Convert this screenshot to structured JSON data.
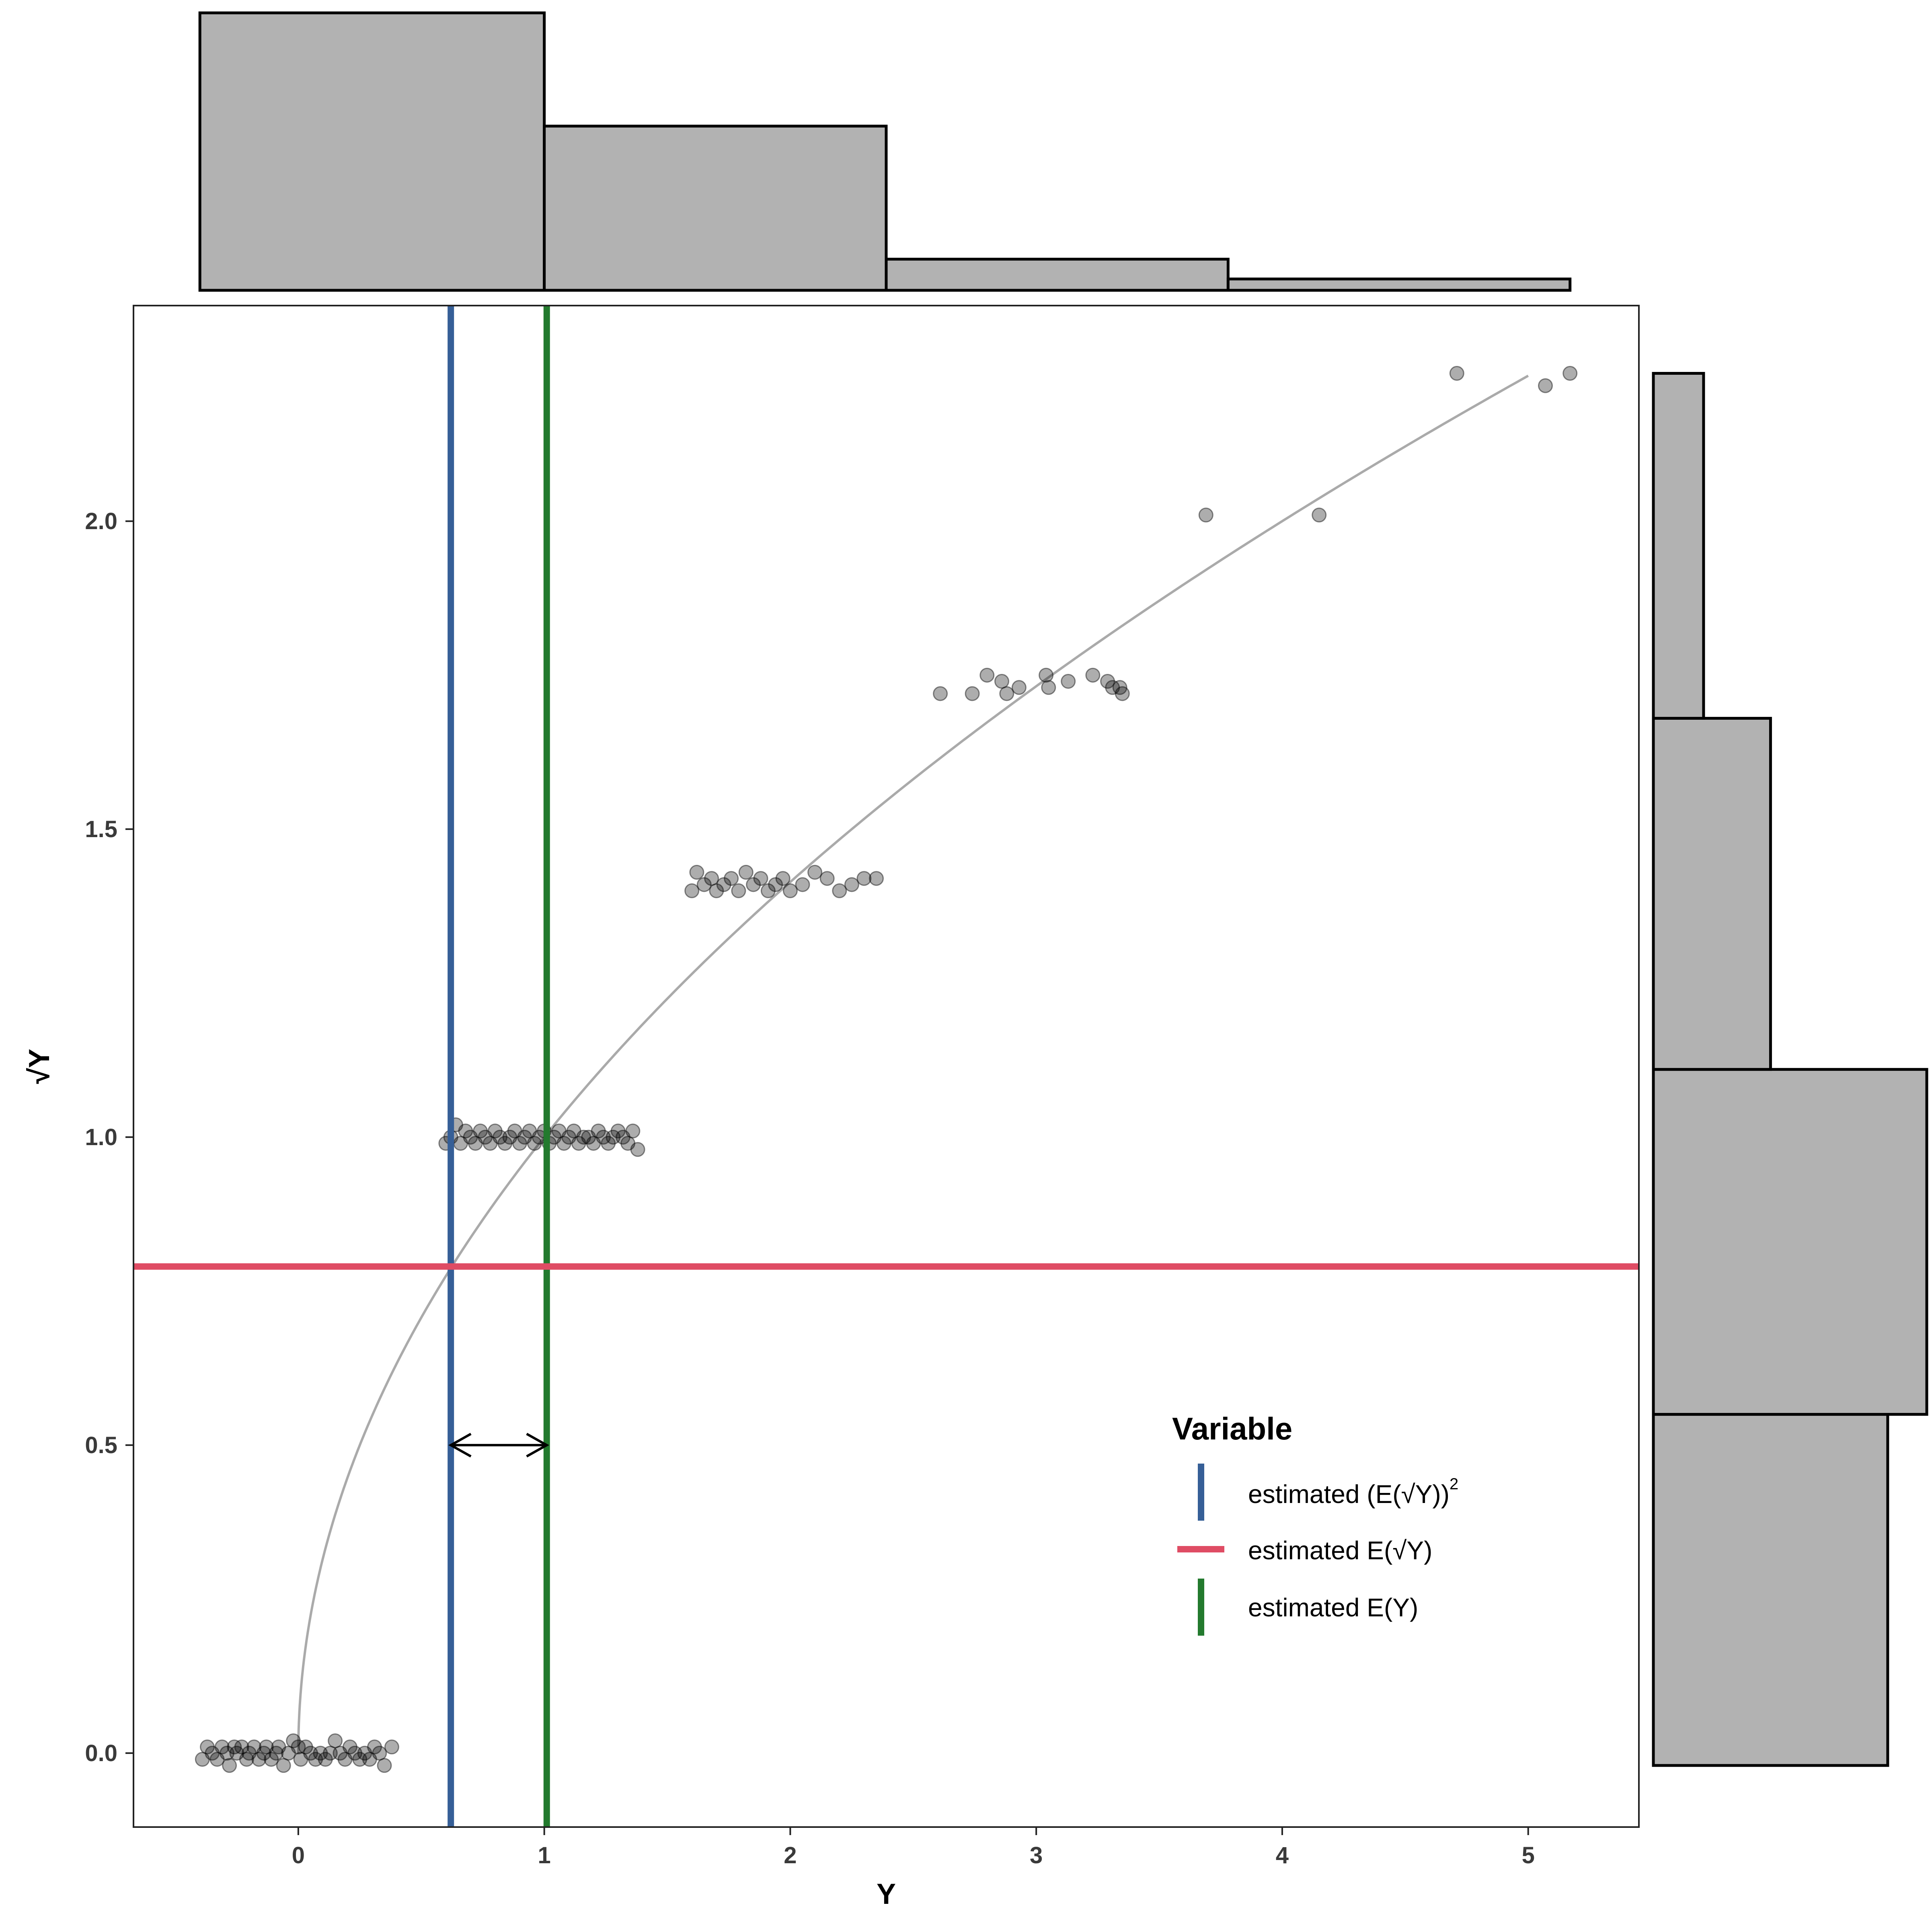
{
  "chart_data": {
    "type": "scatter",
    "xlabel": "Y",
    "ylabel": "√Y",
    "xlim": [
      -0.67,
      5.45
    ],
    "ylim": [
      -0.12,
      2.35
    ],
    "x_ticks": [
      0,
      1,
      2,
      3,
      4,
      5
    ],
    "x_tick_labels": [
      "0",
      "1",
      "2",
      "3",
      "4",
      "5"
    ],
    "y_ticks": [
      0.0,
      0.5,
      1.0,
      1.5,
      2.0
    ],
    "y_tick_labels": [
      "0.0",
      "0.5",
      "1.0",
      "1.5",
      "2.0"
    ],
    "grid": false,
    "colors": {
      "blue": "#365f97",
      "red": "#df4c64",
      "green": "#237a2e",
      "curve": "#aaaaaa",
      "points": "#000000",
      "hist_fill": "#b2b2b2",
      "hist_stroke": "#000000"
    },
    "curve": {
      "function": "sqrt",
      "x_range": [
        0,
        5
      ]
    },
    "reference_lines": {
      "vertical_blue_x": 0.62,
      "vertical_green_x": 1.01,
      "horizontal_red_y": 0.79
    },
    "arrow": {
      "x_from": 0.62,
      "x_to": 1.01,
      "y": 0.5
    },
    "points": [
      [
        -0.39,
        -0.01
      ],
      [
        -0.37,
        0.01
      ],
      [
        -0.35,
        0.0
      ],
      [
        -0.33,
        -0.01
      ],
      [
        -0.31,
        0.01
      ],
      [
        -0.29,
        0.0
      ],
      [
        -0.28,
        -0.02
      ],
      [
        -0.26,
        0.01
      ],
      [
        -0.25,
        0.0
      ],
      [
        -0.23,
        0.01
      ],
      [
        -0.21,
        -0.01
      ],
      [
        -0.2,
        0.0
      ],
      [
        -0.18,
        0.01
      ],
      [
        -0.16,
        -0.01
      ],
      [
        -0.14,
        0.0
      ],
      [
        -0.13,
        0.01
      ],
      [
        -0.11,
        -0.01
      ],
      [
        -0.09,
        0.0
      ],
      [
        -0.08,
        0.01
      ],
      [
        -0.06,
        -0.02
      ],
      [
        -0.04,
        0.0
      ],
      [
        -0.02,
        0.02
      ],
      [
        0.0,
        0.01
      ],
      [
        0.01,
        -0.01
      ],
      [
        0.03,
        0.01
      ],
      [
        0.05,
        0.0
      ],
      [
        0.07,
        -0.01
      ],
      [
        0.09,
        0.0
      ],
      [
        0.11,
        -0.01
      ],
      [
        0.13,
        0.0
      ],
      [
        0.15,
        0.02
      ],
      [
        0.17,
        0.0
      ],
      [
        0.19,
        -0.01
      ],
      [
        0.21,
        0.01
      ],
      [
        0.23,
        0.0
      ],
      [
        0.25,
        -0.01
      ],
      [
        0.27,
        0.0
      ],
      [
        0.29,
        -0.01
      ],
      [
        0.31,
        0.01
      ],
      [
        0.33,
        0.0
      ],
      [
        0.35,
        -0.02
      ],
      [
        0.38,
        0.01
      ],
      [
        0.6,
        0.99
      ],
      [
        0.62,
        1.0
      ],
      [
        0.64,
        1.02
      ],
      [
        0.66,
        0.99
      ],
      [
        0.68,
        1.01
      ],
      [
        0.7,
        1.0
      ],
      [
        0.72,
        0.99
      ],
      [
        0.74,
        1.01
      ],
      [
        0.76,
        1.0
      ],
      [
        0.78,
        0.99
      ],
      [
        0.8,
        1.01
      ],
      [
        0.82,
        1.0
      ],
      [
        0.84,
        0.99
      ],
      [
        0.86,
        1.0
      ],
      [
        0.88,
        1.01
      ],
      [
        0.9,
        0.99
      ],
      [
        0.92,
        1.0
      ],
      [
        0.94,
        1.01
      ],
      [
        0.96,
        0.99
      ],
      [
        0.98,
        1.0
      ],
      [
        1.0,
        1.01
      ],
      [
        1.02,
        0.99
      ],
      [
        1.04,
        1.0
      ],
      [
        1.06,
        1.01
      ],
      [
        1.08,
        0.99
      ],
      [
        1.1,
        1.0
      ],
      [
        1.12,
        1.01
      ],
      [
        1.14,
        0.99
      ],
      [
        1.16,
        1.0
      ],
      [
        1.18,
        1.0
      ],
      [
        1.2,
        0.99
      ],
      [
        1.22,
        1.01
      ],
      [
        1.24,
        1.0
      ],
      [
        1.26,
        0.99
      ],
      [
        1.28,
        1.0
      ],
      [
        1.3,
        1.01
      ],
      [
        1.32,
        1.0
      ],
      [
        1.34,
        0.99
      ],
      [
        1.36,
        1.01
      ],
      [
        1.38,
        0.98
      ],
      [
        1.6,
        1.4
      ],
      [
        1.62,
        1.43
      ],
      [
        1.65,
        1.41
      ],
      [
        1.68,
        1.42
      ],
      [
        1.7,
        1.4
      ],
      [
        1.73,
        1.41
      ],
      [
        1.76,
        1.42
      ],
      [
        1.79,
        1.4
      ],
      [
        1.82,
        1.43
      ],
      [
        1.85,
        1.41
      ],
      [
        1.88,
        1.42
      ],
      [
        1.91,
        1.4
      ],
      [
        1.94,
        1.41
      ],
      [
        1.97,
        1.42
      ],
      [
        2.0,
        1.4
      ],
      [
        2.05,
        1.41
      ],
      [
        2.1,
        1.43
      ],
      [
        2.15,
        1.42
      ],
      [
        2.2,
        1.4
      ],
      [
        2.25,
        1.41
      ],
      [
        2.3,
        1.42
      ],
      [
        2.35,
        1.42
      ],
      [
        2.61,
        1.72
      ],
      [
        2.74,
        1.72
      ],
      [
        2.8,
        1.75
      ],
      [
        2.86,
        1.74
      ],
      [
        2.88,
        1.72
      ],
      [
        2.93,
        1.73
      ],
      [
        3.04,
        1.75
      ],
      [
        3.05,
        1.73
      ],
      [
        3.13,
        1.74
      ],
      [
        3.23,
        1.75
      ],
      [
        3.29,
        1.74
      ],
      [
        3.31,
        1.73
      ],
      [
        3.34,
        1.73
      ],
      [
        3.35,
        1.72
      ],
      [
        3.69,
        2.01
      ],
      [
        4.15,
        2.01
      ],
      [
        4.71,
        2.24
      ],
      [
        5.07,
        2.22
      ],
      [
        5.17,
        2.24
      ]
    ],
    "top_histogram": {
      "bins": [
        [
          -0.4,
          1.0
        ],
        [
          1.0,
          2.39
        ],
        [
          2.39,
          3.78
        ],
        [
          3.78,
          5.17
        ]
      ],
      "counts": [
        49,
        29,
        5.5,
        2
      ]
    },
    "right_histogram": {
      "bins": [
        [
          -0.02,
          0.55
        ],
        [
          0.55,
          1.11
        ],
        [
          1.11,
          1.68
        ],
        [
          1.68,
          2.24
        ]
      ],
      "counts": [
        42,
        49,
        21,
        9
      ]
    }
  },
  "legend": {
    "title": "Variable",
    "items": [
      {
        "prefix": "estimated ",
        "formula": "(E(√Y))",
        "superscript": "2"
      },
      {
        "prefix": "estimated ",
        "formula": "E(√Y)",
        "superscript": ""
      },
      {
        "prefix": "estimated ",
        "formula": "E(Y)",
        "superscript": ""
      }
    ]
  }
}
